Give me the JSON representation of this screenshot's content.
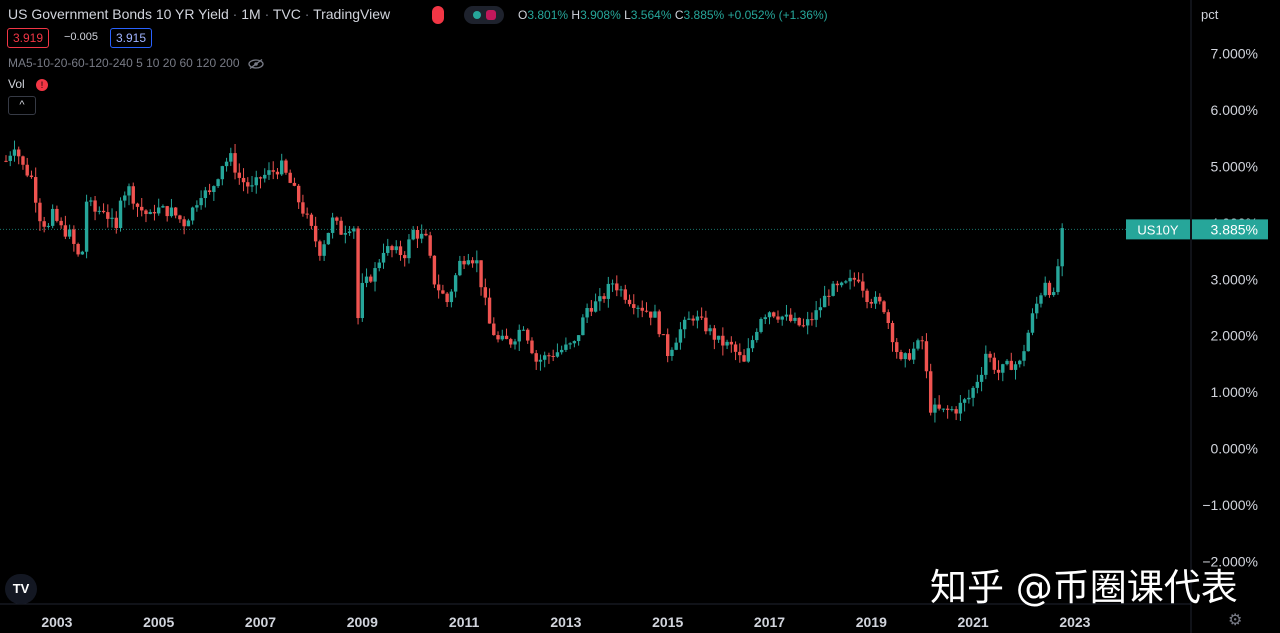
{
  "header": {
    "title": "US Government Bonds 10 YR Yield",
    "interval": "1M",
    "source": "TVC",
    "platform": "TradingView",
    "ohlc": {
      "o_label": "O",
      "o": "3.801%",
      "h_label": "H",
      "h": "3.908%",
      "l_label": "L",
      "l": "3.564%",
      "c_label": "C",
      "c": "3.885%",
      "change": "+0.052% (+1.36%)"
    },
    "sell_price": "3.919",
    "spread": "−0.005",
    "buy_price": "3.915",
    "ma_label": "MA5-10-20-60-120-240 5 10 20 60 120 200",
    "vol_label": "Vol",
    "collapse_label": "^"
  },
  "price_axis_unit": "pct",
  "last_label": {
    "symbol": "US10Y",
    "value": "3.885%"
  },
  "watermark": "知乎 @币圈课代表",
  "logo_text": "TV",
  "colors": {
    "up": "#26a69a",
    "down": "#ef5350",
    "background": "#000000",
    "label_bg": "#26a69a"
  },
  "chart_data": {
    "type": "candlestick",
    "title": "US Government Bonds 10 YR Yield",
    "interval": "monthly",
    "x_tick_labels": [
      "2003",
      "2005",
      "2007",
      "2009",
      "2011",
      "2013",
      "2015",
      "2017",
      "2019",
      "2021",
      "2023"
    ],
    "y_tick_labels": [
      "7.000%",
      "6.000%",
      "5.000%",
      "4.000%",
      "3.000%",
      "2.000%",
      "1.000%",
      "0.000%",
      "−1.000%",
      "−2.000%"
    ],
    "ylim": [
      -2.0,
      7.5
    ],
    "xlim": [
      2002.0,
      2024.9
    ],
    "last_value": 3.885,
    "grid": false,
    "closes": [
      {
        "t": 2002.0,
        "v": 5.1
      },
      {
        "t": 2002.17,
        "v": 5.4
      },
      {
        "t": 2002.33,
        "v": 5.0
      },
      {
        "t": 2002.5,
        "v": 4.8
      },
      {
        "t": 2002.67,
        "v": 4.1
      },
      {
        "t": 2002.83,
        "v": 3.9
      },
      {
        "t": 2002.92,
        "v": 4.15
      },
      {
        "t": 2003.08,
        "v": 3.9
      },
      {
        "t": 2003.25,
        "v": 3.8
      },
      {
        "t": 2003.42,
        "v": 3.4
      },
      {
        "t": 2003.5,
        "v": 3.5
      },
      {
        "t": 2003.58,
        "v": 4.4
      },
      {
        "t": 2003.75,
        "v": 4.2
      },
      {
        "t": 2003.92,
        "v": 4.25
      },
      {
        "t": 2004.17,
        "v": 3.85
      },
      {
        "t": 2004.25,
        "v": 4.5
      },
      {
        "t": 2004.42,
        "v": 4.6
      },
      {
        "t": 2004.58,
        "v": 4.3
      },
      {
        "t": 2004.83,
        "v": 4.1
      },
      {
        "t": 2004.92,
        "v": 4.25
      },
      {
        "t": 2005.25,
        "v": 4.2
      },
      {
        "t": 2005.5,
        "v": 4.0
      },
      {
        "t": 2005.67,
        "v": 4.25
      },
      {
        "t": 2005.83,
        "v": 4.55
      },
      {
        "t": 2006.0,
        "v": 4.5
      },
      {
        "t": 2006.25,
        "v": 5.05
      },
      {
        "t": 2006.42,
        "v": 5.15
      },
      {
        "t": 2006.58,
        "v": 4.8
      },
      {
        "t": 2006.83,
        "v": 4.6
      },
      {
        "t": 2007.0,
        "v": 4.8
      },
      {
        "t": 2007.42,
        "v": 5.0
      },
      {
        "t": 2007.5,
        "v": 4.85
      },
      {
        "t": 2007.67,
        "v": 4.55
      },
      {
        "t": 2007.92,
        "v": 4.05
      },
      {
        "t": 2008.17,
        "v": 3.5
      },
      {
        "t": 2008.42,
        "v": 4.05
      },
      {
        "t": 2008.58,
        "v": 3.85
      },
      {
        "t": 2008.83,
        "v": 4.0
      },
      {
        "t": 2008.92,
        "v": 2.25
      },
      {
        "t": 2009.0,
        "v": 2.85
      },
      {
        "t": 2009.25,
        "v": 3.15
      },
      {
        "t": 2009.42,
        "v": 3.55
      },
      {
        "t": 2009.58,
        "v": 3.5
      },
      {
        "t": 2009.83,
        "v": 3.45
      },
      {
        "t": 2010.0,
        "v": 3.85
      },
      {
        "t": 2010.25,
        "v": 3.7
      },
      {
        "t": 2010.42,
        "v": 2.95
      },
      {
        "t": 2010.67,
        "v": 2.6
      },
      {
        "t": 2010.92,
        "v": 3.3
      },
      {
        "t": 2011.08,
        "v": 3.45
      },
      {
        "t": 2011.25,
        "v": 3.3
      },
      {
        "t": 2011.5,
        "v": 2.2
      },
      {
        "t": 2011.67,
        "v": 1.9
      },
      {
        "t": 2011.92,
        "v": 1.9
      },
      {
        "t": 2012.17,
        "v": 2.2
      },
      {
        "t": 2012.42,
        "v": 1.55
      },
      {
        "t": 2012.67,
        "v": 1.65
      },
      {
        "t": 2012.92,
        "v": 1.75
      },
      {
        "t": 2013.17,
        "v": 1.85
      },
      {
        "t": 2013.42,
        "v": 2.5
      },
      {
        "t": 2013.67,
        "v": 2.6
      },
      {
        "t": 2013.92,
        "v": 2.95
      },
      {
        "t": 2014.25,
        "v": 2.65
      },
      {
        "t": 2014.5,
        "v": 2.5
      },
      {
        "t": 2014.75,
        "v": 2.35
      },
      {
        "t": 2015.0,
        "v": 1.7
      },
      {
        "t": 2015.25,
        "v": 2.1
      },
      {
        "t": 2015.5,
        "v": 2.35
      },
      {
        "t": 2015.75,
        "v": 2.15
      },
      {
        "t": 2016.0,
        "v": 1.9
      },
      {
        "t": 2016.25,
        "v": 1.8
      },
      {
        "t": 2016.5,
        "v": 1.5
      },
      {
        "t": 2016.83,
        "v": 2.35
      },
      {
        "t": 2017.0,
        "v": 2.45
      },
      {
        "t": 2017.33,
        "v": 2.3
      },
      {
        "t": 2017.67,
        "v": 2.15
      },
      {
        "t": 2017.92,
        "v": 2.4
      },
      {
        "t": 2018.17,
        "v": 2.8
      },
      {
        "t": 2018.42,
        "v": 2.85
      },
      {
        "t": 2018.75,
        "v": 3.05
      },
      {
        "t": 2018.92,
        "v": 2.7
      },
      {
        "t": 2019.25,
        "v": 2.5
      },
      {
        "t": 2019.58,
        "v": 1.5
      },
      {
        "t": 2019.83,
        "v": 1.75
      },
      {
        "t": 2020.0,
        "v": 1.9
      },
      {
        "t": 2020.17,
        "v": 0.7
      },
      {
        "t": 2020.42,
        "v": 0.65
      },
      {
        "t": 2020.67,
        "v": 0.7
      },
      {
        "t": 2020.92,
        "v": 0.9
      },
      {
        "t": 2021.17,
        "v": 1.4
      },
      {
        "t": 2021.25,
        "v": 1.7
      },
      {
        "t": 2021.5,
        "v": 1.35
      },
      {
        "t": 2021.75,
        "v": 1.5
      },
      {
        "t": 2021.92,
        "v": 1.5
      },
      {
        "t": 2022.17,
        "v": 2.35
      },
      {
        "t": 2022.42,
        "v": 3.0
      },
      {
        "t": 2022.58,
        "v": 2.65
      },
      {
        "t": 2022.75,
        "v": 3.8
      },
      {
        "t": 2022.83,
        "v": 3.885
      }
    ]
  }
}
